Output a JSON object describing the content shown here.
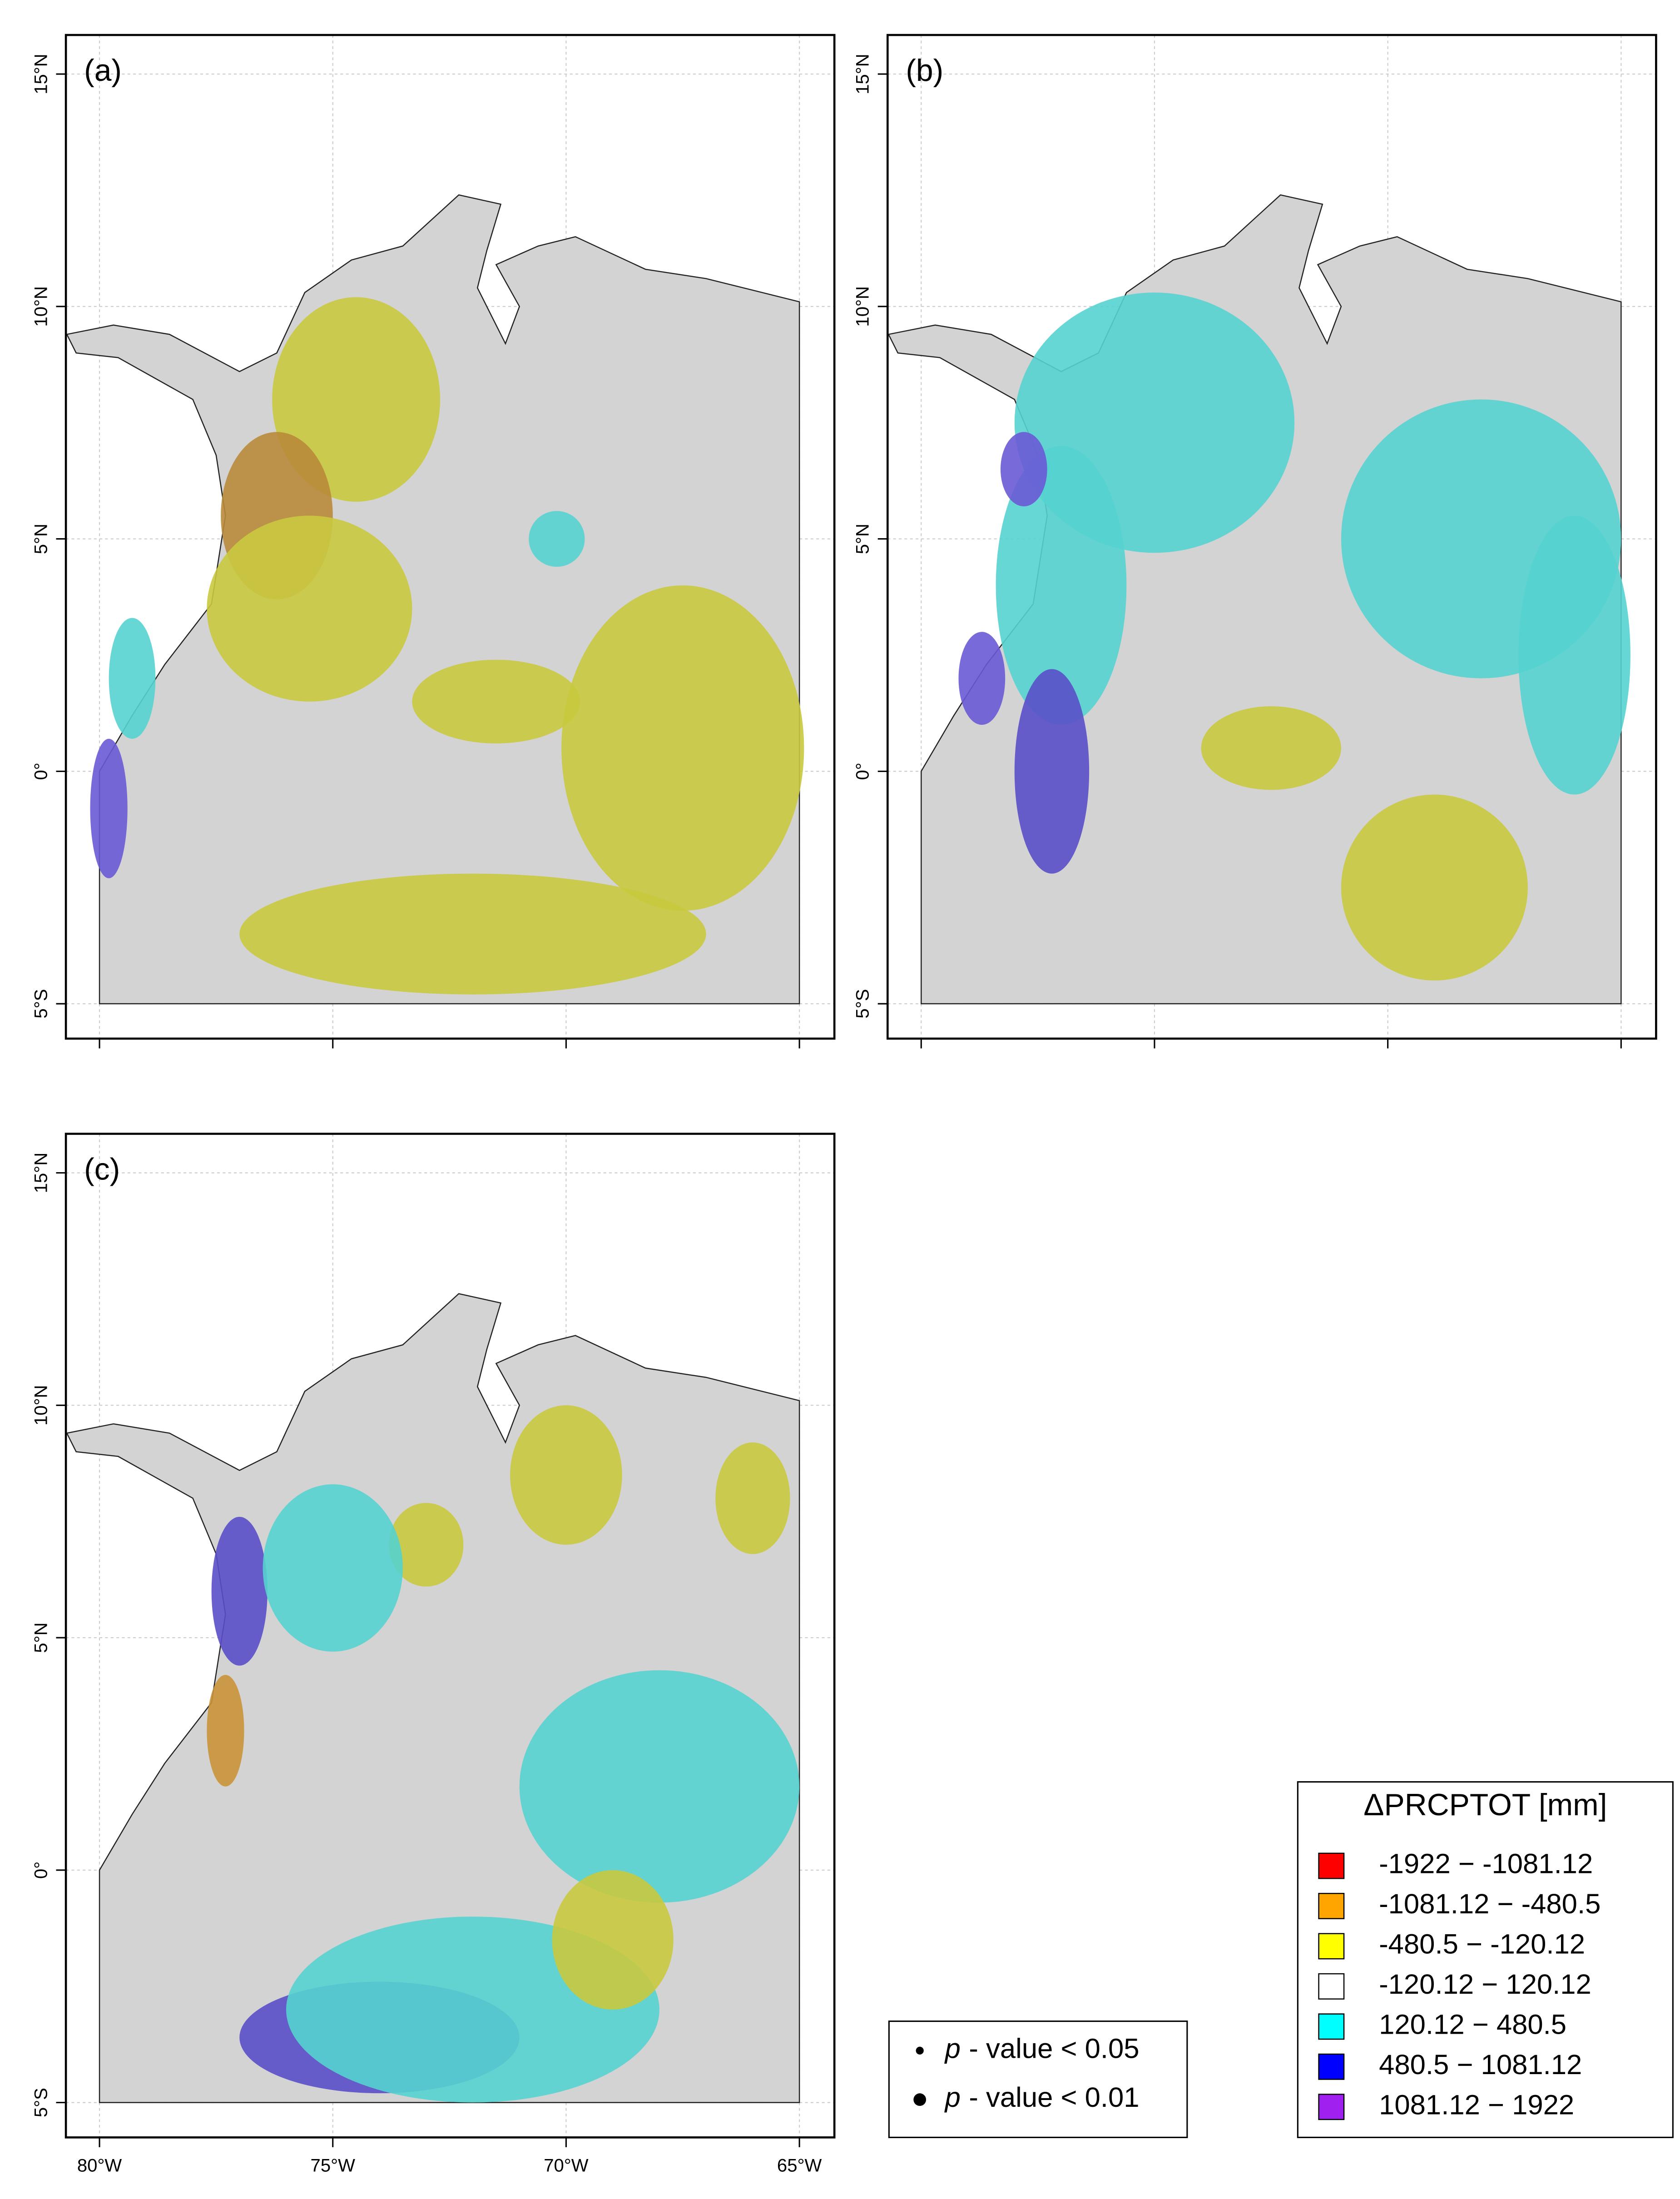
{
  "panels": [
    {
      "label": "(a)"
    },
    {
      "label": "(b)"
    },
    {
      "label": "(c)"
    }
  ],
  "axes": {
    "xlim": [
      -80.72,
      -64.25
    ],
    "ylim": [
      -5.75,
      15.84
    ],
    "xticks": [
      {
        "value": -80,
        "label": "80°W"
      },
      {
        "value": -75,
        "label": "75°W"
      },
      {
        "value": -70,
        "label": "70°W"
      },
      {
        "value": -65,
        "label": "65°W"
      }
    ],
    "yticks": [
      {
        "value": 15,
        "label": "15°N"
      },
      {
        "value": 10,
        "label": "10°N"
      },
      {
        "value": 5,
        "label": "5°N"
      },
      {
        "value": 0,
        "label": "0°"
      },
      {
        "value": -5,
        "label": "5°S"
      }
    ],
    "grid": true
  },
  "legend": {
    "title": "ΔPRCPTOT [mm]",
    "items": [
      {
        "label": "-1922 − -1081.12",
        "color": "#ff0000"
      },
      {
        "label": "-1081.12 − -480.5",
        "color": "#ffa500"
      },
      {
        "label": "-480.5 − -120.12",
        "color": "#ffff00"
      },
      {
        "label": "-120.12 − 120.12",
        "color": "#ffffff"
      },
      {
        "label": "120.12 − 480.5",
        "color": "#00ffff"
      },
      {
        "label": "480.5 − 1081.12",
        "color": "#0000ff"
      },
      {
        "label": "1081.12 − 1922",
        "color": "#a020f0"
      }
    ]
  },
  "significance": {
    "items": [
      {
        "variable": "p",
        "text": "- value < 0.05"
      },
      {
        "variable": "p",
        "text": "- value < 0.01"
      }
    ]
  }
}
